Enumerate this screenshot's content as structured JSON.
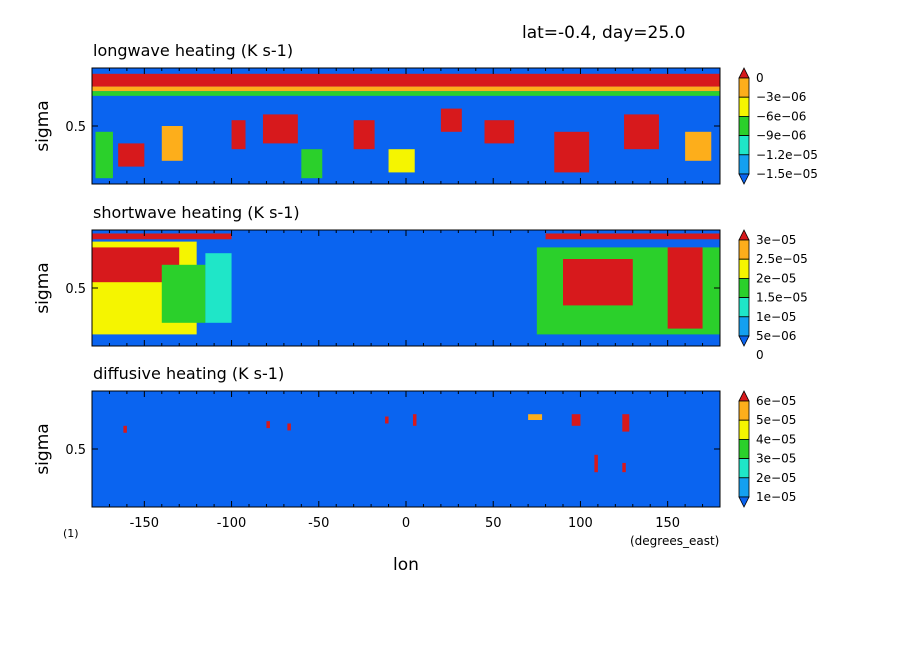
{
  "figure": {
    "header": "lat=-0.4, day=25.0",
    "figure_number": "(1)",
    "x_units": "(degrees_east)",
    "x_label": "lon"
  },
  "chart_data": [
    {
      "type": "heatmap",
      "title": "longwave heating (K s-1)",
      "ylabel": "sigma",
      "yticks": [
        0.5
      ],
      "ytick_labels": [
        "0.5"
      ],
      "xlim": [
        -180,
        180
      ],
      "ylim": [
        0.0,
        1.0
      ],
      "xticks": [
        -150,
        -100,
        -50,
        0,
        50,
        100,
        150
      ],
      "xtick_labels": [
        "-150",
        "-100",
        "-50",
        "0",
        "50",
        "100",
        "150"
      ],
      "legend_labels": [
        "0",
        "−3e−06",
        "−6e−06",
        "−9e−06",
        "−1.2e−05",
        "−1.5e−05"
      ],
      "levels": [
        0,
        -3e-06,
        -6e-06,
        -9e-06,
        -1.2e-05,
        -1.5e-05
      ],
      "colors": [
        "#d7191c",
        "#fdae1b",
        "#f5f500",
        "#2bd02b",
        "#1fe6c8",
        "#14a0f0",
        "#0a64f0"
      ],
      "background_color": "#0a64f0",
      "features": [
        {
          "lon": [
            -180,
            180
          ],
          "sigma": [
            0.84,
            0.95
          ],
          "level": 0
        },
        {
          "lon": [
            -180,
            180
          ],
          "sigma": [
            0.8,
            0.84
          ],
          "level": 1
        },
        {
          "lon": [
            -180,
            180
          ],
          "sigma": [
            0.76,
            0.8
          ],
          "level": 3
        },
        {
          "lon": [
            -178,
            -168
          ],
          "sigma": [
            0.05,
            0.45
          ],
          "level": 3
        },
        {
          "lon": [
            -165,
            -150
          ],
          "sigma": [
            0.15,
            0.35
          ],
          "level": 0
        },
        {
          "lon": [
            -140,
            -128
          ],
          "sigma": [
            0.2,
            0.5
          ],
          "level": 1
        },
        {
          "lon": [
            -100,
            -92
          ],
          "sigma": [
            0.3,
            0.55
          ],
          "level": 0
        },
        {
          "lon": [
            -82,
            -62
          ],
          "sigma": [
            0.35,
            0.6
          ],
          "level": 0
        },
        {
          "lon": [
            -60,
            -48
          ],
          "sigma": [
            0.05,
            0.3
          ],
          "level": 3
        },
        {
          "lon": [
            -30,
            -18
          ],
          "sigma": [
            0.3,
            0.55
          ],
          "level": 0
        },
        {
          "lon": [
            -10,
            5
          ],
          "sigma": [
            0.1,
            0.3
          ],
          "level": 2
        },
        {
          "lon": [
            20,
            32
          ],
          "sigma": [
            0.45,
            0.65
          ],
          "level": 0
        },
        {
          "lon": [
            45,
            62
          ],
          "sigma": [
            0.35,
            0.55
          ],
          "level": 0
        },
        {
          "lon": [
            85,
            105
          ],
          "sigma": [
            0.1,
            0.45
          ],
          "level": 0
        },
        {
          "lon": [
            125,
            145
          ],
          "sigma": [
            0.3,
            0.6
          ],
          "level": 0
        },
        {
          "lon": [
            160,
            175
          ],
          "sigma": [
            0.2,
            0.45
          ],
          "level": 1
        }
      ]
    },
    {
      "type": "heatmap",
      "title": "shortwave heating (K s-1)",
      "ylabel": "sigma",
      "yticks": [
        0.5
      ],
      "ytick_labels": [
        "0.5"
      ],
      "xlim": [
        -180,
        180
      ],
      "ylim": [
        0.0,
        1.0
      ],
      "xticks": [
        -150,
        -100,
        -50,
        0,
        50,
        100,
        150
      ],
      "xtick_labels": [
        "-150",
        "-100",
        "-50",
        "0",
        "50",
        "100",
        "150"
      ],
      "legend_labels": [
        "3e−05",
        "2.5e−05",
        "2e−05",
        "1.5e−05",
        "1e−05",
        "5e−06",
        "0"
      ],
      "levels": [
        3e-05,
        2.5e-05,
        2e-05,
        1.5e-05,
        1e-05,
        5e-06,
        0
      ],
      "colors": [
        "#d7191c",
        "#fdae1b",
        "#f5f500",
        "#2bd02b",
        "#1fe6c8",
        "#14a0f0",
        "#0a64f0"
      ],
      "background_color": "#0a64f0",
      "features": [
        {
          "lon": [
            -180,
            -100
          ],
          "sigma": [
            0.92,
            0.97
          ],
          "level": 0
        },
        {
          "lon": [
            80,
            180
          ],
          "sigma": [
            0.92,
            0.97
          ],
          "level": 0
        },
        {
          "lon": [
            -180,
            -120
          ],
          "sigma": [
            0.1,
            0.9
          ],
          "level": 2
        },
        {
          "lon": [
            -180,
            -130
          ],
          "sigma": [
            0.55,
            0.85
          ],
          "level": 0
        },
        {
          "lon": [
            -140,
            -115
          ],
          "sigma": [
            0.2,
            0.7
          ],
          "level": 3
        },
        {
          "lon": [
            -115,
            -100
          ],
          "sigma": [
            0.2,
            0.8
          ],
          "level": 4
        },
        {
          "lon": [
            75,
            180
          ],
          "sigma": [
            0.1,
            0.85
          ],
          "level": 3
        },
        {
          "lon": [
            90,
            130
          ],
          "sigma": [
            0.35,
            0.75
          ],
          "level": 0
        },
        {
          "lon": [
            150,
            170
          ],
          "sigma": [
            0.15,
            0.85
          ],
          "level": 0
        }
      ]
    },
    {
      "type": "heatmap",
      "title": "diffusive heating (K s-1)",
      "ylabel": "sigma",
      "yticks": [
        0.5
      ],
      "ytick_labels": [
        "0.5"
      ],
      "xlim": [
        -180,
        180
      ],
      "ylim": [
        0.0,
        1.0
      ],
      "xticks": [
        -150,
        -100,
        -50,
        0,
        50,
        100,
        150
      ],
      "xtick_labels": [
        "-150",
        "-100",
        "-50",
        "0",
        "50",
        "100",
        "150"
      ],
      "legend_labels": [
        "6e−05",
        "5e−05",
        "4e−05",
        "3e−05",
        "2e−05",
        "1e−05"
      ],
      "levels": [
        6e-05,
        5e-05,
        4e-05,
        3e-05,
        2e-05,
        1e-05
      ],
      "colors": [
        "#d7191c",
        "#fdae1b",
        "#f5f500",
        "#2bd02b",
        "#1fe6c8",
        "#14a0f0",
        "#0a64f0"
      ],
      "background_color": "#0a64f0",
      "features": [
        {
          "lon": [
            -162,
            -160
          ],
          "sigma": [
            0.64,
            0.7
          ],
          "level": 0
        },
        {
          "lon": [
            -80,
            -78
          ],
          "sigma": [
            0.68,
            0.74
          ],
          "level": 0
        },
        {
          "lon": [
            -68,
            -66
          ],
          "sigma": [
            0.66,
            0.72
          ],
          "level": 0
        },
        {
          "lon": [
            -12,
            -10
          ],
          "sigma": [
            0.72,
            0.78
          ],
          "level": 0
        },
        {
          "lon": [
            4,
            6
          ],
          "sigma": [
            0.7,
            0.8
          ],
          "level": 0
        },
        {
          "lon": [
            70,
            78
          ],
          "sigma": [
            0.75,
            0.8
          ],
          "level": 1
        },
        {
          "lon": [
            95,
            100
          ],
          "sigma": [
            0.7,
            0.8
          ],
          "level": 0
        },
        {
          "lon": [
            108,
            110
          ],
          "sigma": [
            0.3,
            0.45
          ],
          "level": 0
        },
        {
          "lon": [
            124,
            128
          ],
          "sigma": [
            0.65,
            0.8
          ],
          "level": 0
        },
        {
          "lon": [
            124,
            126
          ],
          "sigma": [
            0.3,
            0.38
          ],
          "level": 0
        }
      ]
    }
  ]
}
